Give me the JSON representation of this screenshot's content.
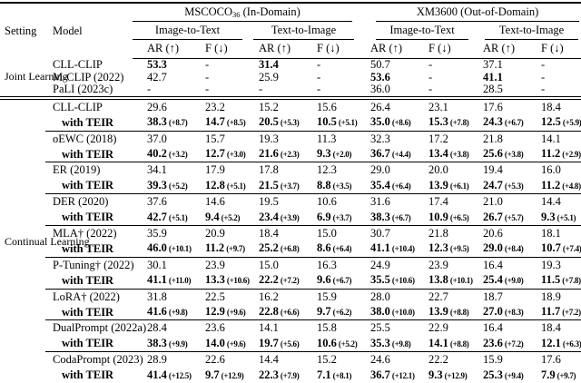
{
  "colors": {
    "text": "#000000",
    "background": "#ffffff",
    "rule": "#000000"
  },
  "table": {
    "headers": {
      "setting": "Setting",
      "model": "Model",
      "group_in_domain": {
        "name": "MSCOCO",
        "subscript": "36",
        "suffix": " (In-Domain)"
      },
      "group_out_domain": "XM3600 (Out-of-Domain)",
      "image_to_text": "Image-to-Text",
      "text_to_image": "Text-to-Image",
      "ar_up": "AR (↑)",
      "f_down": "F (↓)"
    },
    "joint": {
      "setting": "Joint Learning",
      "rows": [
        {
          "model": "CLL-CLIP",
          "cells": [
            {
              "v": "53.3",
              "b": true
            },
            {
              "v": "-"
            },
            {
              "v": "31.4",
              "b": true
            },
            {
              "v": "-"
            },
            {
              "v": "50.7"
            },
            {
              "v": "-"
            },
            {
              "v": "37.1"
            },
            {
              "v": "-"
            }
          ]
        },
        {
          "model": "M-CLIP (2022)",
          "cells": [
            {
              "v": "42.7"
            },
            {
              "v": "-"
            },
            {
              "v": "25.9"
            },
            {
              "v": "-"
            },
            {
              "v": "53.6",
              "b": true
            },
            {
              "v": "-"
            },
            {
              "v": "41.1",
              "b": true
            },
            {
              "v": "-"
            }
          ]
        },
        {
          "model": "PaLI (2023c)",
          "cells": [
            {
              "v": "-"
            },
            {
              "v": "-"
            },
            {
              "v": "-"
            },
            {
              "v": "-"
            },
            {
              "v": "36.0"
            },
            {
              "v": "-"
            },
            {
              "v": "28.5"
            },
            {
              "v": "-"
            }
          ]
        }
      ]
    },
    "continual": {
      "setting": "Continual Learning",
      "teir_label": "with TEIR",
      "groups": [
        {
          "model": "CLL-CLIP",
          "base": [
            "29.6",
            "23.2",
            "15.2",
            "15.6",
            "26.4",
            "23.1",
            "17.6",
            "18.4"
          ],
          "teir": [
            [
              "38.3",
              "(+8.7)"
            ],
            [
              "14.7",
              "(+8.5)"
            ],
            [
              "20.5",
              "(+5.3)"
            ],
            [
              "10.5",
              "(+5.1)"
            ],
            [
              "35.0",
              "(+8.6)"
            ],
            [
              "15.3",
              "(+7.8)"
            ],
            [
              "24.3",
              "(+6.7)"
            ],
            [
              "12.5",
              "(+5.9)"
            ]
          ]
        },
        {
          "model": "oEWC (2018)",
          "base": [
            "37.0",
            "15.7",
            "19.3",
            "11.3",
            "32.3",
            "17.2",
            "21.8",
            "14.1"
          ],
          "teir": [
            [
              "40.2",
              "(+3.2)"
            ],
            [
              "12.7",
              "(+3.0)"
            ],
            [
              "21.6",
              "(+2.3)"
            ],
            [
              "9.3",
              "(+2.0)"
            ],
            [
              "36.7",
              "(+4.4)"
            ],
            [
              "13.4",
              "(+3.8)"
            ],
            [
              "25.6",
              "(+3.8)"
            ],
            [
              "11.2",
              "(+2.9)"
            ]
          ]
        },
        {
          "model": "ER (2019)",
          "base": [
            "34.1",
            "17.9",
            "17.8",
            "12.3",
            "29.0",
            "20.0",
            "19.4",
            "16.0"
          ],
          "teir": [
            [
              "39.3",
              "(+5.2)"
            ],
            [
              "12.8",
              "(+5.1)"
            ],
            [
              "21.5",
              "(+3.7)"
            ],
            [
              "8.8",
              "(+3.5)"
            ],
            [
              "35.4",
              "(+6.4)"
            ],
            [
              "13.9",
              "(+6.1)"
            ],
            [
              "24.7",
              "(+5.3)"
            ],
            [
              "11.2",
              "(+4.8)"
            ]
          ]
        },
        {
          "model": "DER (2020)",
          "base": [
            "37.6",
            "14.6",
            "19.5",
            "10.6",
            "31.6",
            "17.4",
            "21.0",
            "14.4"
          ],
          "teir": [
            [
              "42.7",
              "(+5.1)"
            ],
            [
              "9.4",
              "(+5.2)"
            ],
            [
              "23.4",
              "(+3.9)"
            ],
            [
              "6.9",
              "(+3.7)"
            ],
            [
              "38.3",
              "(+6.7)"
            ],
            [
              "10.9",
              "(+6.5)"
            ],
            [
              "26.7",
              "(+5.7)"
            ],
            [
              "9.3",
              "(+5.1)"
            ]
          ]
        },
        {
          "model": "MLA† (2022)",
          "base": [
            "35.9",
            "20.9",
            "18.4",
            "15.0",
            "30.7",
            "21.8",
            "20.6",
            "18.1"
          ],
          "teir": [
            [
              "46.0",
              "(+10.1)"
            ],
            [
              "11.2",
              "(+9.7)"
            ],
            [
              "25.2",
              "(+6.8)"
            ],
            [
              "8.6",
              "(+6.4)"
            ],
            [
              "41.1",
              "(+10.4)"
            ],
            [
              "12.3",
              "(+9.5)"
            ],
            [
              "29.0",
              "(+8.4)"
            ],
            [
              "10.7",
              "(+7.4)"
            ]
          ]
        },
        {
          "model": "P-Tuning† (2022)",
          "base": [
            "30.1",
            "23.9",
            "15.0",
            "16.3",
            "24.9",
            "23.9",
            "16.4",
            "19.3"
          ],
          "teir": [
            [
              "41.1",
              "(+11.0)"
            ],
            [
              "13.3",
              "(+10.6)"
            ],
            [
              "22.2",
              "(+7.2)"
            ],
            [
              "9.6",
              "(+6.7)"
            ],
            [
              "35.5",
              "(+10.6)"
            ],
            [
              "13.8",
              "(+10.1)"
            ],
            [
              "25.4",
              "(+9.0)"
            ],
            [
              "11.5",
              "(+7.8)"
            ]
          ]
        },
        {
          "model": "LoRA† (2022)",
          "base": [
            "31.8",
            "22.5",
            "16.2",
            "15.9",
            "28.0",
            "22.7",
            "18.7",
            "18.9"
          ],
          "teir": [
            [
              "41.6",
              "(+9.8)"
            ],
            [
              "12.9",
              "(+9.6)"
            ],
            [
              "22.8",
              "(+6.6)"
            ],
            [
              "9.7",
              "(+6.2)"
            ],
            [
              "38.0",
              "(+10.0)"
            ],
            [
              "13.9",
              "(+8.8)"
            ],
            [
              "27.0",
              "(+8.3)"
            ],
            [
              "11.7",
              "(+7.2)"
            ]
          ]
        },
        {
          "model": "DualPrompt (2022a)",
          "base": [
            "28.4",
            "23.6",
            "14.1",
            "15.8",
            "25.5",
            "22.9",
            "16.4",
            "18.4"
          ],
          "teir": [
            [
              "38.3",
              "(+9.9)"
            ],
            [
              "14.0",
              "(+9.6)"
            ],
            [
              "19.7",
              "(+5.6)"
            ],
            [
              "10.6",
              "(+5.2)"
            ],
            [
              "35.3",
              "(+9.8)"
            ],
            [
              "14.1",
              "(+8.8)"
            ],
            [
              "23.6",
              "(+7.2)"
            ],
            [
              "12.1",
              "(+6.3)"
            ]
          ]
        },
        {
          "model": "CodaPrompt (2023)",
          "base": [
            "28.9",
            "22.6",
            "14.4",
            "15.2",
            "24.6",
            "22.2",
            "15.9",
            "17.6"
          ],
          "teir": [
            [
              "41.4",
              "(+12.5)"
            ],
            [
              "9.7",
              "(+12.9)"
            ],
            [
              "22.3",
              "(+7.9)"
            ],
            [
              "7.1",
              "(+8.1)"
            ],
            [
              "36.7",
              "(+12.1)"
            ],
            [
              "9.3",
              "(+12.9)"
            ],
            [
              "25.3",
              "(+9.4)"
            ],
            [
              "7.9",
              "(+9.7)"
            ]
          ]
        }
      ]
    }
  }
}
